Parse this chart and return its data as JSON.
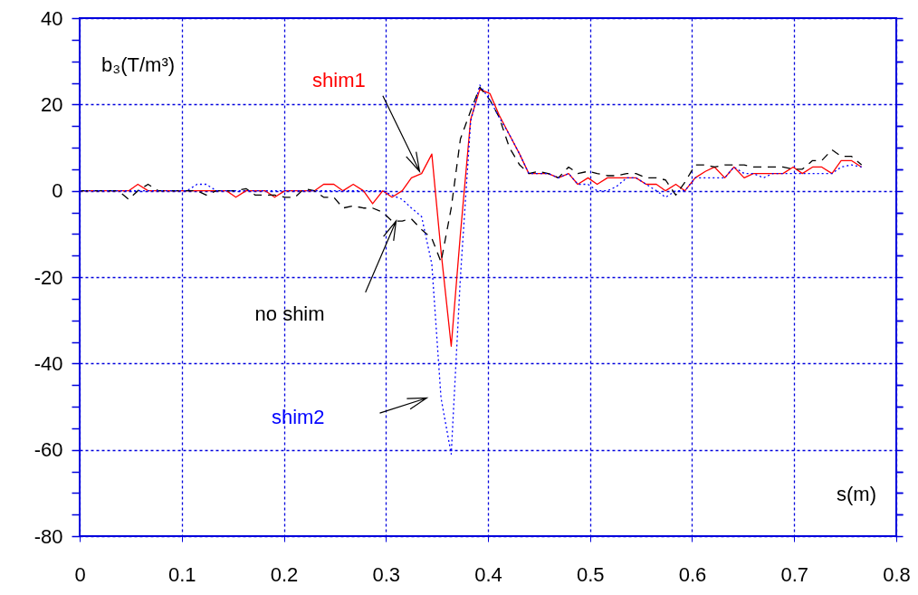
{
  "chart_data": {
    "type": "line",
    "xlabel": "s(m)",
    "ylabel": "b₃(T/m³)",
    "x": [
      0,
      0.01,
      0.019,
      0.029,
      0.038,
      0.048,
      0.057,
      0.067,
      0.077,
      0.086,
      0.096,
      0.105,
      0.115,
      0.124,
      0.134,
      0.144,
      0.153,
      0.163,
      0.172,
      0.182,
      0.191,
      0.201,
      0.211,
      0.22,
      0.23,
      0.239,
      0.249,
      0.258,
      0.268,
      0.278,
      0.287,
      0.297,
      0.306,
      0.316,
      0.325,
      0.335,
      0.345,
      0.354,
      0.364,
      0.373,
      0.383,
      0.392,
      0.402,
      0.411,
      0.421,
      0.431,
      0.44,
      0.45,
      0.459,
      0.469,
      0.479,
      0.488,
      0.498,
      0.507,
      0.517,
      0.526,
      0.536,
      0.545,
      0.555,
      0.565,
      0.574,
      0.584,
      0.593,
      0.603,
      0.613,
      0.622,
      0.632,
      0.641,
      0.651,
      0.66,
      0.67,
      0.679,
      0.689,
      0.699,
      0.708,
      0.718,
      0.727,
      0.737,
      0.746,
      0.756,
      0.766
    ],
    "series": [
      {
        "name": "shim1",
        "color": "#ff0000",
        "line_style": "solid",
        "values": [
          0,
          0,
          0,
          0,
          0,
          0,
          1.5,
          0,
          0,
          0,
          0,
          0,
          0,
          0,
          0,
          0,
          -1.5,
          0,
          0,
          0,
          -1.5,
          0,
          0,
          0,
          0,
          1.5,
          1.5,
          0,
          1.5,
          0,
          -3,
          0,
          -1.5,
          0,
          3,
          4,
          8.5,
          -14,
          -36,
          -10,
          16.5,
          23.5,
          22.5,
          17.5,
          13,
          8.5,
          4,
          4,
          4,
          3,
          4,
          1.5,
          3,
          1.5,
          3,
          3,
          3,
          3,
          1.5,
          1.5,
          0,
          1.5,
          0,
          3,
          4.5,
          5.5,
          3,
          5.5,
          3,
          4,
          4,
          4,
          4,
          5.5,
          4,
          5.5,
          5.5,
          4,
          7,
          7,
          5.5
        ]
      },
      {
        "name": "no shim",
        "color": "#000000",
        "line_style": "dashed",
        "values": [
          0,
          0,
          0,
          0,
          0,
          -2,
          0,
          1.5,
          0,
          0,
          0,
          0,
          0,
          -1,
          0,
          0,
          0,
          0.5,
          -1,
          -1,
          -1,
          -1.5,
          -1.5,
          0.5,
          0,
          -1.5,
          -1.5,
          -4,
          -3.5,
          -4,
          -4,
          -5,
          -7,
          -7,
          -6.5,
          -9,
          -11,
          -16.5,
          -4,
          12,
          18.5,
          24,
          21,
          17,
          10,
          6,
          4,
          4.5,
          4,
          3,
          5.5,
          4,
          4.5,
          4,
          3.5,
          3.5,
          4,
          4,
          3,
          3,
          2.5,
          -1,
          2,
          6,
          6,
          5.5,
          6,
          6,
          6,
          5.5,
          5.5,
          5.5,
          5.5,
          5,
          5,
          7,
          7,
          9.5,
          8,
          8,
          6
        ]
      },
      {
        "name": "shim2",
        "color": "#0000ff",
        "line_style": "dotted",
        "values": [
          0,
          0,
          0,
          0,
          0,
          0,
          0,
          0,
          0,
          0,
          0,
          0,
          1.5,
          1.5,
          0,
          0,
          0,
          0,
          0,
          0,
          0,
          0,
          0,
          0,
          0,
          0,
          0,
          0,
          0,
          0,
          0,
          0,
          -1,
          -2,
          -4,
          -6,
          -17,
          -48,
          -61,
          -20,
          16,
          24.5,
          21,
          17,
          13,
          8.5,
          4,
          4,
          4,
          3,
          4,
          1.5,
          1.5,
          0,
          0,
          1,
          3,
          3,
          1.5,
          0,
          -1.5,
          0,
          0,
          3,
          3,
          3,
          3,
          5.5,
          4,
          4,
          3,
          4,
          4,
          4,
          4,
          4,
          4,
          4,
          5.5,
          6,
          5.5
        ]
      }
    ],
    "xlim": [
      0,
      0.8
    ],
    "xticks": [
      0,
      0.1,
      0.2,
      0.3,
      0.4,
      0.5,
      0.6,
      0.7,
      0.8
    ],
    "ylim": [
      -80,
      40
    ],
    "yticks": [
      -80,
      {
        "value": -75,
        "label": null
      },
      {
        "value": -70,
        "label": null
      },
      {
        "value": -65,
        "label": null
      },
      -60,
      {
        "value": -55,
        "label": null
      },
      {
        "value": -50,
        "label": null
      },
      {
        "value": -45,
        "label": null
      },
      -40,
      {
        "value": -35,
        "label": null
      },
      {
        "value": -30,
        "label": null
      },
      {
        "value": -25,
        "label": null
      },
      -20,
      {
        "value": -15,
        "label": null
      },
      {
        "value": -10,
        "label": null
      },
      {
        "value": -5,
        "label": null
      },
      0,
      {
        "value": 5,
        "label": null
      },
      {
        "value": 10,
        "label": null
      },
      {
        "value": 15,
        "label": null
      },
      20,
      {
        "value": 25,
        "label": null
      },
      {
        "value": 30,
        "label": null
      },
      {
        "value": 35,
        "label": null
      },
      40
    ],
    "grid": true,
    "marker": "none"
  }
}
